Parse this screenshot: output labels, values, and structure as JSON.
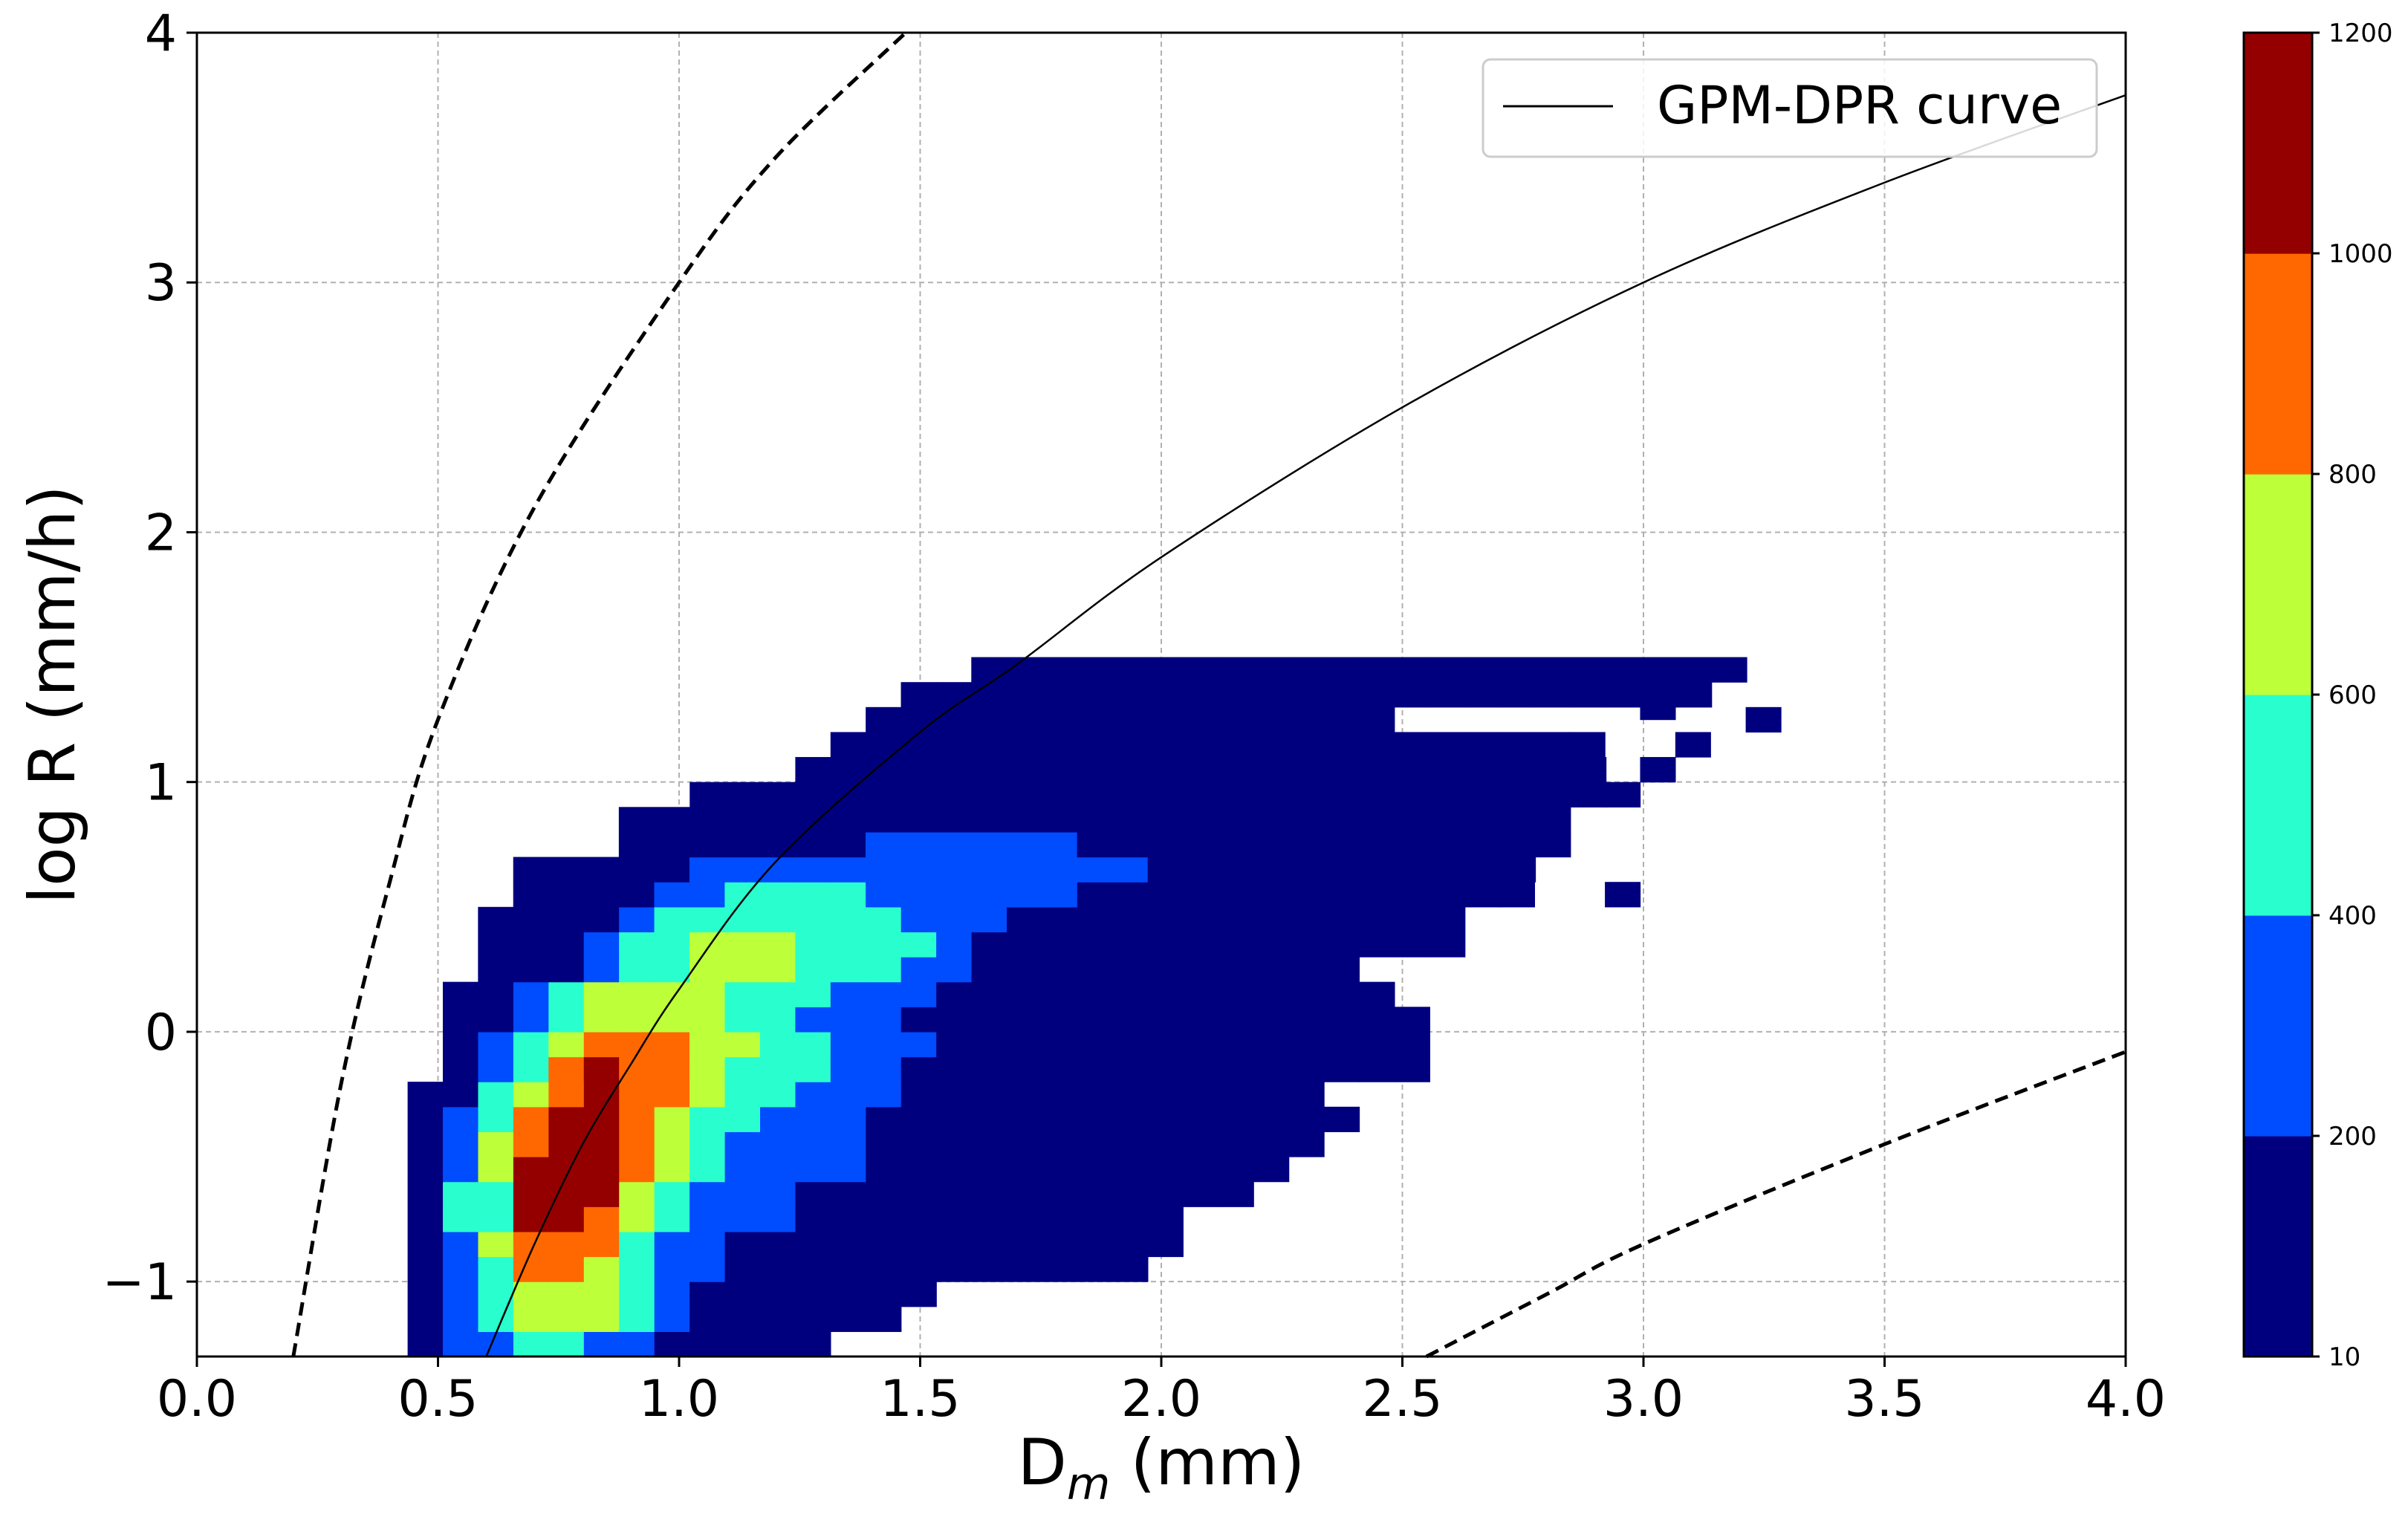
{
  "chart_data": {
    "type": "heatmap",
    "title": "",
    "xlabel": "D",
    "xlabel_sub": "m",
    "xlabel_unit": " (mm)",
    "ylabel": "log R (mm/h)",
    "xlim": [
      0.0,
      4.0
    ],
    "ylim": [
      -1.3,
      4.0
    ],
    "x_ticks": [
      0.0,
      0.5,
      1.0,
      1.5,
      2.0,
      2.5,
      3.0,
      3.5,
      4.0
    ],
    "x_tick_labels": [
      "0.0",
      "0.5",
      "1.0",
      "1.5",
      "2.0",
      "2.5",
      "3.0",
      "3.5",
      "4.0"
    ],
    "y_ticks": [
      -1,
      0,
      1,
      2,
      3,
      4
    ],
    "y_tick_labels": [
      "−1",
      "0",
      "1",
      "2",
      "3",
      "4"
    ],
    "grid": true,
    "legend": {
      "position": "top-right",
      "entries": [
        {
          "label": "GPM-DPR curve",
          "style": "solid",
          "color": "#000000"
        }
      ]
    },
    "colorbar": {
      "bounds": [
        10,
        200,
        400,
        600,
        800,
        1000,
        1200
      ],
      "tick_labels": [
        "10",
        "200",
        "400",
        "600",
        "800",
        "1000",
        "1200"
      ],
      "colors": [
        "#00007f",
        "#004cff",
        "#29ffce",
        "#bdff39",
        "#ff6800",
        "#940000"
      ]
    },
    "curves": [
      {
        "name": "GPM-DPR curve",
        "style": "solid",
        "points": [
          [
            0.6,
            -1.3
          ],
          [
            0.7,
            -0.85
          ],
          [
            0.8,
            -0.45
          ],
          [
            0.9,
            -0.13
          ],
          [
            1.0,
            0.17
          ],
          [
            1.2,
            0.68
          ],
          [
            1.5,
            1.2
          ],
          [
            1.7,
            1.47
          ],
          [
            2.0,
            1.9
          ],
          [
            2.5,
            2.5
          ],
          [
            3.0,
            3.0
          ],
          [
            3.5,
            3.4
          ],
          [
            4.0,
            3.75
          ]
        ]
      },
      {
        "style": "dashed",
        "points": [
          [
            0.2,
            -1.3
          ],
          [
            0.3,
            -0.2
          ],
          [
            0.4,
            0.6
          ],
          [
            0.5,
            1.25
          ],
          [
            0.7,
            2.1
          ],
          [
            1.0,
            3.0
          ],
          [
            1.2,
            3.5
          ],
          [
            1.47,
            4.0
          ]
        ]
      },
      {
        "style": "dashed",
        "points": [
          [
            2.55,
            -1.3
          ],
          [
            2.8,
            -1.05
          ],
          [
            3.0,
            -0.85
          ],
          [
            3.5,
            -0.45
          ],
          [
            4.0,
            -0.08
          ]
        ]
      }
    ],
    "cell_size": {
      "dx": 0.0731,
      "dy": 0.1
    },
    "rows": [
      {
        "y": -1.3,
        "x0": 0.437,
        "values": [
          50,
          300,
          300,
          500,
          500,
          300,
          300,
          100,
          100,
          100,
          100,
          100
        ]
      },
      {
        "y": -1.2,
        "x0": 0.437,
        "values": [
          50,
          300,
          500,
          700,
          700,
          700,
          500,
          300,
          100,
          100,
          100,
          100,
          100,
          100
        ]
      },
      {
        "y": -1.1,
        "x0": 0.437,
        "values": [
          50,
          300,
          500,
          700,
          700,
          700,
          500,
          300,
          100,
          100,
          100,
          100,
          100,
          100,
          100
        ]
      },
      {
        "y": -1.0,
        "x0": 0.437,
        "values": [
          50,
          300,
          500,
          900,
          900,
          700,
          500,
          300,
          300,
          100,
          100,
          100,
          100,
          100,
          100,
          100,
          100,
          100,
          100,
          100,
          100
        ]
      },
      {
        "y": -0.9,
        "x0": 0.437,
        "values": [
          50,
          300,
          700,
          900,
          900,
          900,
          500,
          300,
          300,
          100,
          100,
          100,
          100,
          100,
          100,
          100,
          100,
          100,
          100,
          100,
          100,
          100
        ]
      },
      {
        "y": -0.8,
        "x0": 0.437,
        "values": [
          50,
          500,
          500,
          1100,
          1100,
          900,
          700,
          500,
          300,
          300,
          300,
          100,
          100,
          100,
          100,
          100,
          100,
          100,
          100,
          100,
          100,
          100
        ]
      },
      {
        "y": -0.7,
        "x0": 0.437,
        "values": [
          50,
          500,
          500,
          1100,
          1100,
          1100,
          700,
          500,
          300,
          300,
          300,
          100,
          100,
          100,
          100,
          100,
          100,
          100,
          100,
          100,
          100,
          100,
          100,
          100
        ]
      },
      {
        "y": -0.6,
        "x0": 0.437,
        "values": [
          50,
          300,
          700,
          1100,
          1100,
          1100,
          900,
          700,
          500,
          300,
          300,
          300,
          300,
          100,
          100,
          100,
          100,
          100,
          100,
          100,
          100,
          100,
          100,
          100,
          100
        ]
      },
      {
        "y": -0.5,
        "x0": 0.437,
        "values": [
          50,
          300,
          700,
          900,
          1100,
          1100,
          900,
          700,
          500,
          300,
          300,
          300,
          300,
          100,
          100,
          100,
          100,
          100,
          100,
          100,
          100,
          100,
          100,
          100,
          100,
          100
        ]
      },
      {
        "y": -0.4,
        "x0": 0.437,
        "values": [
          50,
          300,
          500,
          900,
          1100,
          1100,
          900,
          700,
          500,
          500,
          300,
          300,
          300,
          100,
          100,
          100,
          100,
          100,
          100,
          100,
          100,
          100,
          100,
          100,
          100,
          100,
          50
        ]
      },
      {
        "y": -0.3,
        "x0": 0.437,
        "values": [
          50,
          100,
          500,
          700,
          900,
          1100,
          900,
          900,
          700,
          500,
          500,
          300,
          300,
          300,
          100,
          100,
          100,
          100,
          100,
          100,
          100,
          100,
          100,
          100,
          100,
          100
        ]
      },
      {
        "y": -0.2,
        "x0": 0.51,
        "values": [
          100,
          300,
          500,
          900,
          1100,
          900,
          900,
          700,
          500,
          500,
          500,
          300,
          300,
          100,
          100,
          100,
          100,
          100,
          100,
          100,
          100,
          100,
          50,
          50,
          50,
          50,
          50,
          50
        ]
      },
      {
        "y": -0.1,
        "x0": 0.51,
        "values": [
          100,
          300,
          500,
          700,
          900,
          900,
          900,
          700,
          700,
          500,
          500,
          300,
          300,
          300,
          100,
          100,
          100,
          100,
          100,
          100,
          100,
          100,
          100,
          100,
          100,
          100,
          100,
          100
        ]
      },
      {
        "y": 0.0,
        "x0": 0.51,
        "values": [
          100,
          100,
          300,
          500,
          700,
          700,
          700,
          700,
          500,
          500,
          300,
          300,
          300,
          100,
          100,
          100,
          100,
          100,
          100,
          100,
          100,
          100,
          100,
          100,
          100,
          100,
          100,
          50
        ]
      },
      {
        "y": 0.1,
        "x0": 0.51,
        "values": [
          100,
          100,
          300,
          500,
          700,
          700,
          700,
          700,
          500,
          500,
          500,
          300,
          300,
          300,
          100,
          100,
          100,
          100,
          100,
          100,
          100,
          100,
          100,
          100,
          100,
          100,
          100
        ]
      },
      {
        "y": 0.2,
        "x0": 0.583,
        "values": [
          100,
          100,
          100,
          300,
          500,
          500,
          700,
          700,
          700,
          500,
          500,
          500,
          300,
          300,
          100,
          100,
          100,
          100,
          100,
          100,
          100,
          100,
          100,
          100,
          100
        ]
      },
      {
        "y": 0.3,
        "x0": 0.583,
        "values": [
          100,
          100,
          100,
          300,
          500,
          500,
          700,
          700,
          700,
          500,
          500,
          500,
          500,
          300,
          100,
          100,
          100,
          100,
          100,
          100,
          100,
          100,
          100,
          100,
          100,
          100,
          100,
          100
        ]
      },
      {
        "y": 0.4,
        "x0": 0.583,
        "values": [
          100,
          100,
          100,
          100,
          300,
          500,
          500,
          500,
          500,
          500,
          500,
          500,
          300,
          300,
          300,
          100,
          100,
          100,
          100,
          100,
          100,
          100,
          100,
          100,
          100,
          100,
          100,
          100
        ]
      },
      {
        "y": 0.5,
        "x0": 0.656,
        "values": [
          100,
          100,
          100,
          100,
          300,
          300,
          500,
          500,
          500,
          500,
          300,
          300,
          300,
          300,
          300,
          300,
          100,
          100,
          100,
          100,
          100,
          100,
          100,
          100,
          100,
          100,
          100,
          100
        ]
      },
      {
        "y": 0.6,
        "x0": 0.656,
        "values": [
          100,
          100,
          100,
          100,
          100,
          300,
          300,
          300,
          300,
          300,
          300,
          300,
          300,
          300,
          300,
          300,
          300,
          300,
          100,
          100,
          100,
          100,
          100,
          100,
          100,
          100,
          100,
          100,
          100
        ]
      },
      {
        "y": 0.7,
        "x0": 0.875,
        "values": [
          100,
          100,
          100,
          100,
          100,
          100,
          100,
          300,
          300,
          300,
          300,
          300,
          300,
          100,
          100,
          100,
          100,
          100,
          100,
          100,
          100,
          100,
          100,
          100,
          100,
          100,
          100
        ]
      },
      {
        "y": 0.8,
        "x0": 0.875,
        "values": [
          100,
          100,
          100,
          100,
          100,
          100,
          100,
          100,
          100,
          100,
          100,
          100,
          100,
          100,
          100,
          100,
          100,
          100,
          100,
          100,
          100,
          100,
          100,
          100,
          100,
          100,
          100
        ]
      },
      {
        "y": 0.9,
        "x0": 1.022,
        "values": [
          100,
          100,
          100,
          100,
          100,
          100,
          100,
          100,
          100,
          100,
          100,
          100,
          100,
          100,
          100,
          100,
          100,
          100,
          100,
          100,
          100,
          100,
          100,
          100,
          100,
          100
        ]
      },
      {
        "y": 1.0,
        "x0": 1.241,
        "values": [
          100,
          100,
          100,
          100,
          100,
          100,
          100,
          100,
          100,
          100,
          100,
          100,
          100,
          100,
          100,
          100,
          100,
          100,
          100,
          100,
          100,
          100,
          100
        ]
      },
      {
        "y": 1.1,
        "x0": 1.314,
        "values": [
          100,
          100,
          100,
          100,
          100,
          100,
          100,
          100,
          100,
          100,
          100,
          100,
          100,
          100,
          100,
          100,
          100,
          100,
          100,
          100,
          100
        ]
      },
      {
        "y": 1.2,
        "x0": 1.387,
        "values": [
          100,
          100,
          100,
          100,
          100,
          100,
          100,
          100,
          100,
          100,
          100,
          100,
          100,
          100,
          100
        ]
      },
      {
        "y": 1.3,
        "x0": 1.46,
        "values": [
          100,
          100,
          100,
          100,
          100,
          100,
          100,
          100,
          100,
          100,
          100,
          100,
          100,
          100,
          100,
          100,
          100,
          100,
          100,
          100,
          100,
          100,
          100
        ]
      },
      {
        "y": 1.4,
        "x0": 1.606,
        "values": [
          100,
          100,
          100,
          100,
          100,
          100,
          100,
          100,
          100,
          100,
          100,
          100,
          100,
          100,
          100,
          100,
          100,
          100,
          100,
          100,
          100,
          100
        ]
      }
    ],
    "isolated_cells": [
      [
        2.701,
        0.5,
        50
      ],
      [
        2.92,
        0.9,
        50
      ],
      [
        2.847,
        1.1,
        50
      ],
      [
        2.993,
        1.3,
        50
      ],
      [
        2.993,
        1.0,
        50
      ],
      [
        3.066,
        1.1,
        50
      ],
      [
        2.92,
        0.5,
        50
      ],
      [
        3.212,
        1.2,
        50
      ],
      [
        2.993,
        1.25,
        50
      ]
    ]
  }
}
